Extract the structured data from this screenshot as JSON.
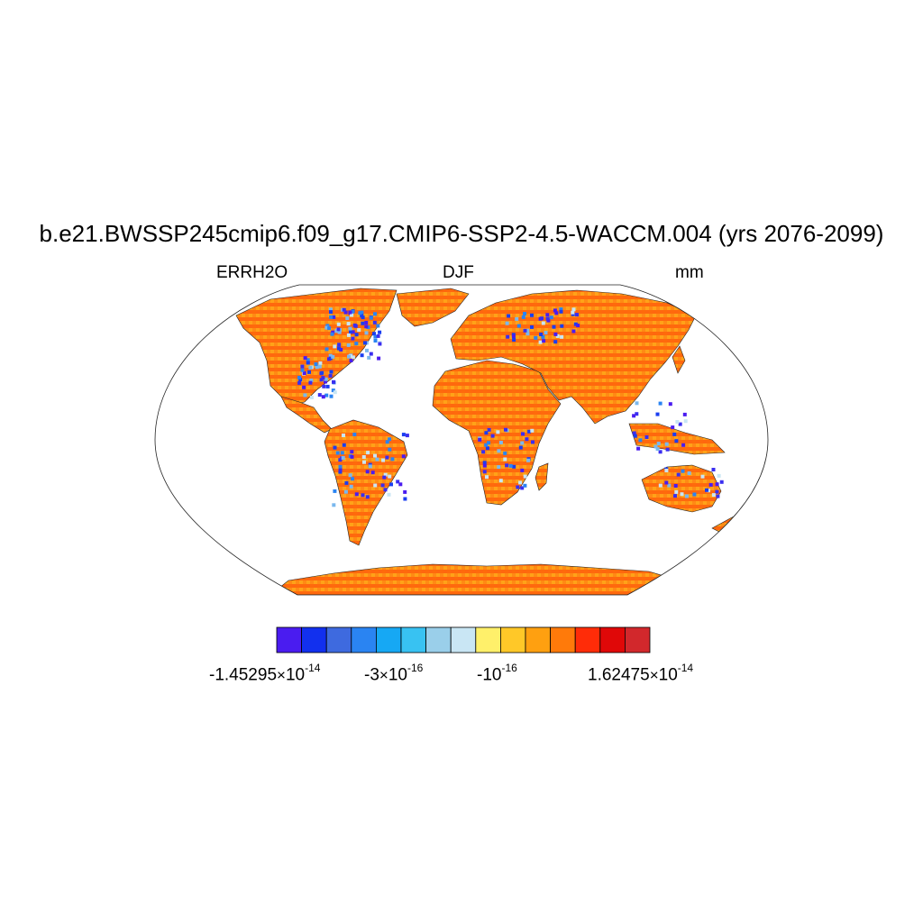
{
  "title": "b.e21.BWSSP245cmip6.f09_g17.CMIP6-SSP2-4.5-WACCM.004 (yrs 2076-2099)",
  "left_label": "ERRH2O",
  "center_label": "DJF",
  "right_label": "mm",
  "projection": "Robinson",
  "colorbar": {
    "colors": [
      "#4a1cf0",
      "#1230ee",
      "#3e6adf",
      "#2a84f2",
      "#16a8f4",
      "#38c2f2",
      "#9acfea",
      "#c9e6f4",
      "#fff06a",
      "#ffc828",
      "#ffa010",
      "#ff7a0a",
      "#ff2c08",
      "#e00808",
      "#d2282c"
    ],
    "labels": [
      {
        "mantissa": "-1.45295",
        "times": "×",
        "base": "10",
        "exponent": "-14"
      },
      {
        "mantissa": "-3",
        "times": "×",
        "base": "10",
        "exponent": "-16"
      },
      {
        "mantissa": "-",
        "times": "",
        "base": "10",
        "exponent": "-16"
      },
      {
        "mantissa": "1.62475",
        "times": "×",
        "base": "10",
        "exponent": "-14"
      }
    ]
  }
}
